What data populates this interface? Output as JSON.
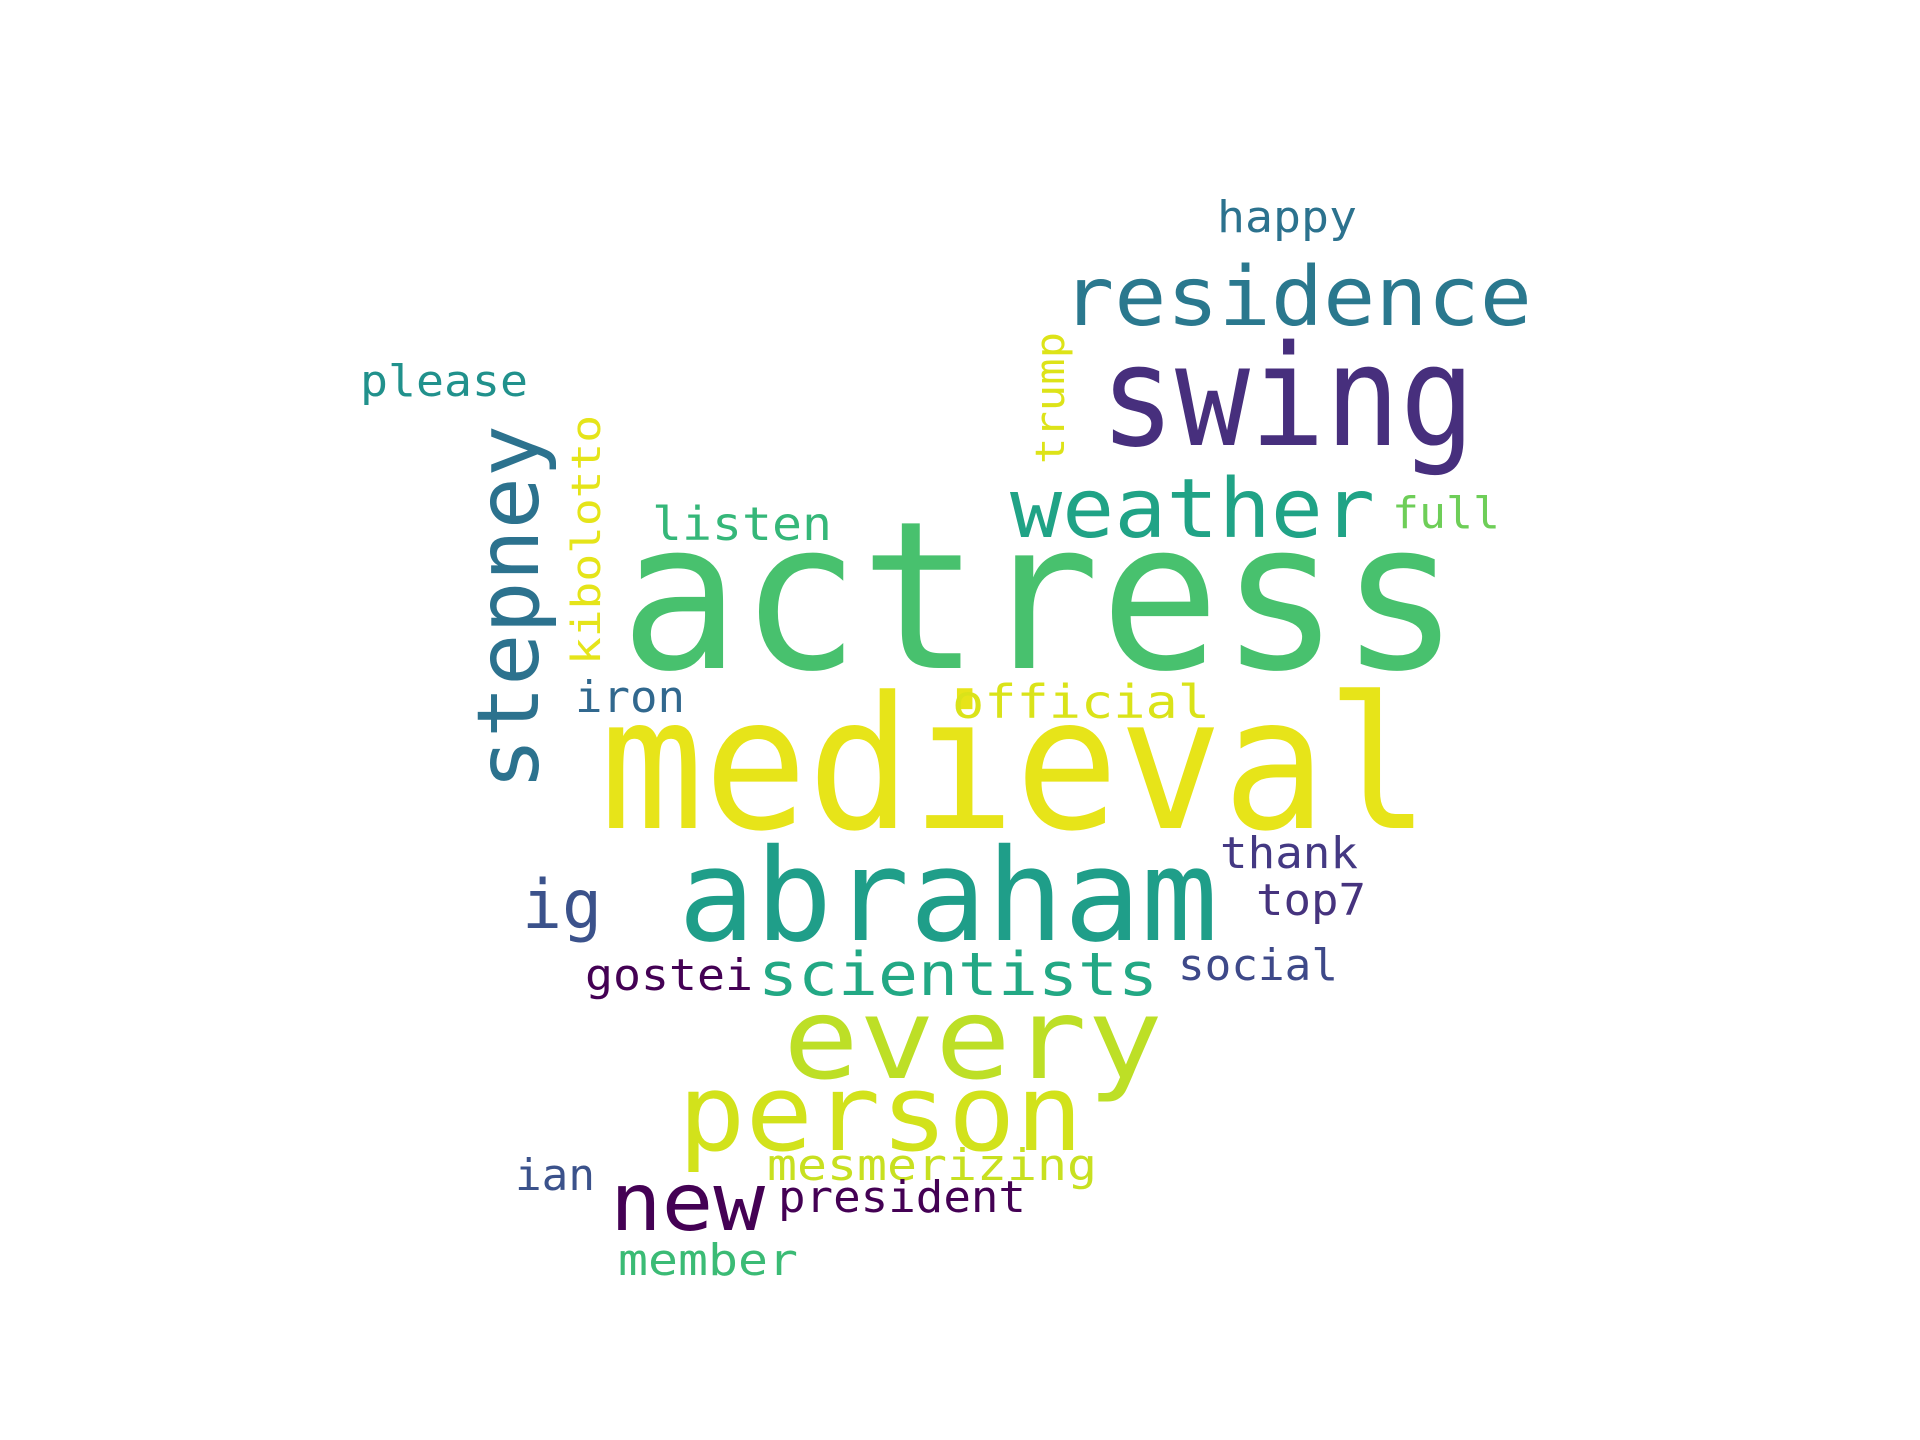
{
  "words": [
    {
      "text": "actress",
      "color": "#48c16e"
    },
    {
      "text": "medieval",
      "color": "#e7e419"
    },
    {
      "text": "swing",
      "color": "#472f7d"
    },
    {
      "text": "abraham",
      "color": "#1f9e89"
    },
    {
      "text": "residence",
      "color": "#2a788e"
    },
    {
      "text": "weather",
      "color": "#20a386"
    },
    {
      "text": "stepney",
      "color": "#2c728e"
    },
    {
      "text": "every",
      "color": "#bddf26"
    },
    {
      "text": "person",
      "color": "#d2e21b"
    },
    {
      "text": "scientists",
      "color": "#22a884"
    },
    {
      "text": "new",
      "color": "#440154"
    },
    {
      "text": "ig",
      "color": "#3b528b"
    },
    {
      "text": "happy",
      "color": "#2c728e"
    },
    {
      "text": "please",
      "color": "#21918c"
    },
    {
      "text": "trump",
      "color": "#dde318"
    },
    {
      "text": "kibolotto",
      "color": "#e5e419"
    },
    {
      "text": "full",
      "color": "#6ece58"
    },
    {
      "text": "listen",
      "color": "#35b779"
    },
    {
      "text": "iron",
      "color": "#31688e"
    },
    {
      "text": "official",
      "color": "#dae319"
    },
    {
      "text": "thank",
      "color": "#443983"
    },
    {
      "text": "top7",
      "color": "#46337e"
    },
    {
      "text": "gostei",
      "color": "#440154"
    },
    {
      "text": "social",
      "color": "#3e4989"
    },
    {
      "text": "mesmerizing",
      "color": "#c8e020"
    },
    {
      "text": "ian",
      "color": "#3b528b"
    },
    {
      "text": "president",
      "color": "#440154"
    },
    {
      "text": "member",
      "color": "#3bbb75"
    }
  ]
}
